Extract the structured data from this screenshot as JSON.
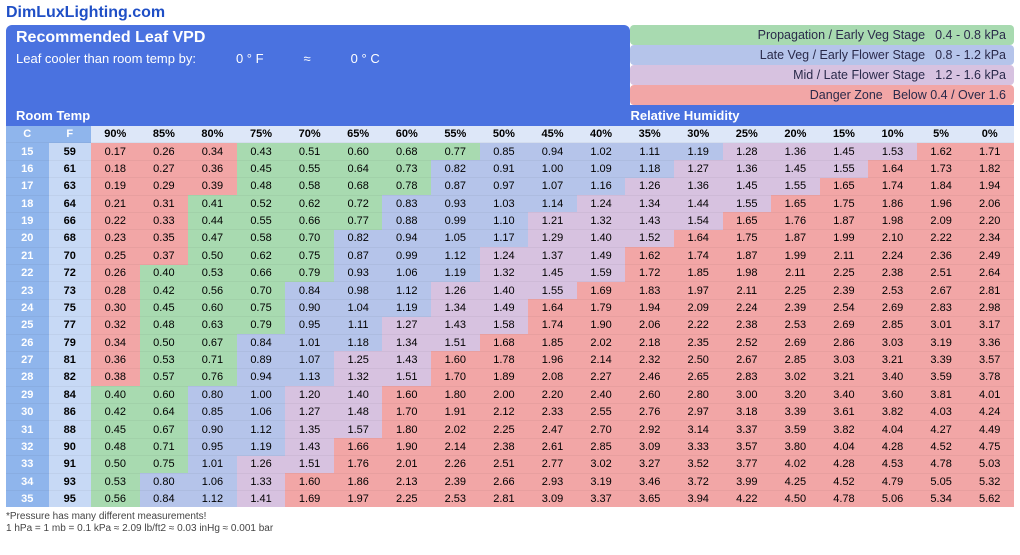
{
  "site_title": "DimLuxLighting.com",
  "chart_title": "Recommended Leaf VPD",
  "leaf_cooler_label": "Leaf cooler than room temp by:",
  "leaf_f": "0 ° F",
  "approx": "≈",
  "leaf_c": "0 ° C",
  "legend": [
    {
      "label": "Propagation / Early Veg Stage",
      "range": "0.4 - 0.8 kPa",
      "bg": "#a8dab0"
    },
    {
      "label": "Late Veg / Early Flower Stage",
      "range": "0.8 - 1.2 kPa",
      "bg": "#b5c4ea"
    },
    {
      "label": "Mid / Late Flower Stage",
      "range": "1.2 - 1.6 kPa",
      "bg": "#d7c2e0"
    },
    {
      "label": "Danger Zone",
      "range": "Below 0.4 / Over 1.6",
      "bg": "#f2a6a6"
    }
  ],
  "header_bg": "#4a72e0",
  "section_bg": "#4a72e0",
  "room_temp_label": "Room Temp",
  "rh_label": "Relative Humidity",
  "col_c": "C",
  "col_f": "F",
  "humidity_cols": [
    "90%",
    "85%",
    "80%",
    "75%",
    "70%",
    "65%",
    "60%",
    "55%",
    "50%",
    "45%",
    "40%",
    "35%",
    "30%",
    "25%",
    "20%",
    "15%",
    "10%",
    "5%",
    "0%"
  ],
  "temp_header_bg": "#8fb5ec",
  "hum_header_bg": "#dde7f8",
  "row_alt_bg": "#f2f6fd",
  "colors": {
    "danger": "#f2a6a6",
    "prop": "#a8dab0",
    "lateveg": "#b5c4ea",
    "mid": "#d7c2e0"
  },
  "thresholds": {
    "danger_low": 0.4,
    "prop_max": 0.8,
    "lateveg_max": 1.2,
    "mid_max": 1.6
  },
  "rows": [
    {
      "c": 15,
      "f": 59,
      "v": [
        0.17,
        0.26,
        0.34,
        0.43,
        0.51,
        0.6,
        0.68,
        0.77,
        0.85,
        0.94,
        1.02,
        1.11,
        1.19,
        1.28,
        1.36,
        1.45,
        1.53,
        1.62,
        1.71
      ]
    },
    {
      "c": 16,
      "f": 61,
      "v": [
        0.18,
        0.27,
        0.36,
        0.45,
        0.55,
        0.64,
        0.73,
        0.82,
        0.91,
        1.0,
        1.09,
        1.18,
        1.27,
        1.36,
        1.45,
        1.55,
        1.64,
        1.73,
        1.82
      ]
    },
    {
      "c": 17,
      "f": 63,
      "v": [
        0.19,
        0.29,
        0.39,
        0.48,
        0.58,
        0.68,
        0.78,
        0.87,
        0.97,
        1.07,
        1.16,
        1.26,
        1.36,
        1.45,
        1.55,
        1.65,
        1.74,
        1.84,
        1.94
      ]
    },
    {
      "c": 18,
      "f": 64,
      "v": [
        0.21,
        0.31,
        0.41,
        0.52,
        0.62,
        0.72,
        0.83,
        0.93,
        1.03,
        1.14,
        1.24,
        1.34,
        1.44,
        1.55,
        1.65,
        1.75,
        1.86,
        1.96,
        2.06
      ]
    },
    {
      "c": 19,
      "f": 66,
      "v": [
        0.22,
        0.33,
        0.44,
        0.55,
        0.66,
        0.77,
        0.88,
        0.99,
        1.1,
        1.21,
        1.32,
        1.43,
        1.54,
        1.65,
        1.76,
        1.87,
        1.98,
        2.09,
        2.2
      ]
    },
    {
      "c": 20,
      "f": 68,
      "v": [
        0.23,
        0.35,
        0.47,
        0.58,
        0.7,
        0.82,
        0.94,
        1.05,
        1.17,
        1.29,
        1.4,
        1.52,
        1.64,
        1.75,
        1.87,
        1.99,
        2.1,
        2.22,
        2.34
      ]
    },
    {
      "c": 21,
      "f": 70,
      "v": [
        0.25,
        0.37,
        0.5,
        0.62,
        0.75,
        0.87,
        0.99,
        1.12,
        1.24,
        1.37,
        1.49,
        1.62,
        1.74,
        1.87,
        1.99,
        2.11,
        2.24,
        2.36,
        2.49
      ]
    },
    {
      "c": 22,
      "f": 72,
      "v": [
        0.26,
        0.4,
        0.53,
        0.66,
        0.79,
        0.93,
        1.06,
        1.19,
        1.32,
        1.45,
        1.59,
        1.72,
        1.85,
        1.98,
        2.11,
        2.25,
        2.38,
        2.51,
        2.64
      ]
    },
    {
      "c": 23,
      "f": 73,
      "v": [
        0.28,
        0.42,
        0.56,
        0.7,
        0.84,
        0.98,
        1.12,
        1.26,
        1.4,
        1.55,
        1.69,
        1.83,
        1.97,
        2.11,
        2.25,
        2.39,
        2.53,
        2.67,
        2.81
      ]
    },
    {
      "c": 24,
      "f": 75,
      "v": [
        0.3,
        0.45,
        0.6,
        0.75,
        0.9,
        1.04,
        1.19,
        1.34,
        1.49,
        1.64,
        1.79,
        1.94,
        2.09,
        2.24,
        2.39,
        2.54,
        2.69,
        2.83,
        2.98
      ]
    },
    {
      "c": 25,
      "f": 77,
      "v": [
        0.32,
        0.48,
        0.63,
        0.79,
        0.95,
        1.11,
        1.27,
        1.43,
        1.58,
        1.74,
        1.9,
        2.06,
        2.22,
        2.38,
        2.53,
        2.69,
        2.85,
        3.01,
        3.17
      ]
    },
    {
      "c": 26,
      "f": 79,
      "v": [
        0.34,
        0.5,
        0.67,
        0.84,
        1.01,
        1.18,
        1.34,
        1.51,
        1.68,
        1.85,
        2.02,
        2.18,
        2.35,
        2.52,
        2.69,
        2.86,
        3.03,
        3.19,
        3.36
      ]
    },
    {
      "c": 27,
      "f": 81,
      "v": [
        0.36,
        0.53,
        0.71,
        0.89,
        1.07,
        1.25,
        1.43,
        1.6,
        1.78,
        1.96,
        2.14,
        2.32,
        2.5,
        2.67,
        2.85,
        3.03,
        3.21,
        3.39,
        3.57
      ]
    },
    {
      "c": 28,
      "f": 82,
      "v": [
        0.38,
        0.57,
        0.76,
        0.94,
        1.13,
        1.32,
        1.51,
        1.7,
        1.89,
        2.08,
        2.27,
        2.46,
        2.65,
        2.83,
        3.02,
        3.21,
        3.4,
        3.59,
        3.78
      ]
    },
    {
      "c": 29,
      "f": 84,
      "v": [
        0.4,
        0.6,
        0.8,
        1.0,
        1.2,
        1.4,
        1.6,
        1.8,
        2.0,
        2.2,
        2.4,
        2.6,
        2.8,
        3.0,
        3.2,
        3.4,
        3.6,
        3.81,
        4.01
      ]
    },
    {
      "c": 30,
      "f": 86,
      "v": [
        0.42,
        0.64,
        0.85,
        1.06,
        1.27,
        1.48,
        1.7,
        1.91,
        2.12,
        2.33,
        2.55,
        2.76,
        2.97,
        3.18,
        3.39,
        3.61,
        3.82,
        4.03,
        4.24
      ]
    },
    {
      "c": 31,
      "f": 88,
      "v": [
        0.45,
        0.67,
        0.9,
        1.12,
        1.35,
        1.57,
        1.8,
        2.02,
        2.25,
        2.47,
        2.7,
        2.92,
        3.14,
        3.37,
        3.59,
        3.82,
        4.04,
        4.27,
        4.49
      ]
    },
    {
      "c": 32,
      "f": 90,
      "v": [
        0.48,
        0.71,
        0.95,
        1.19,
        1.43,
        1.66,
        1.9,
        2.14,
        2.38,
        2.61,
        2.85,
        3.09,
        3.33,
        3.57,
        3.8,
        4.04,
        4.28,
        4.52,
        4.75
      ]
    },
    {
      "c": 33,
      "f": 91,
      "v": [
        0.5,
        0.75,
        1.01,
        1.26,
        1.51,
        1.76,
        2.01,
        2.26,
        2.51,
        2.77,
        3.02,
        3.27,
        3.52,
        3.77,
        4.02,
        4.28,
        4.53,
        4.78,
        5.03
      ]
    },
    {
      "c": 34,
      "f": 93,
      "v": [
        0.53,
        0.8,
        1.06,
        1.33,
        1.6,
        1.86,
        2.13,
        2.39,
        2.66,
        2.93,
        3.19,
        3.46,
        3.72,
        3.99,
        4.25,
        4.52,
        4.79,
        5.05,
        5.32
      ]
    },
    {
      "c": 35,
      "f": 95,
      "v": [
        0.56,
        0.84,
        1.12,
        1.41,
        1.69,
        1.97,
        2.25,
        2.53,
        2.81,
        3.09,
        3.37,
        3.65,
        3.94,
        4.22,
        4.5,
        4.78,
        5.06,
        5.34,
        5.62
      ]
    }
  ],
  "footnote1": "*Pressure has many different measurements!",
  "footnote2": "1 hPa = 1 mb = 0.1 kPa ≈ 2.09 lb/ft2 ≈ 0.03 inHg ≈ 0.001 bar"
}
